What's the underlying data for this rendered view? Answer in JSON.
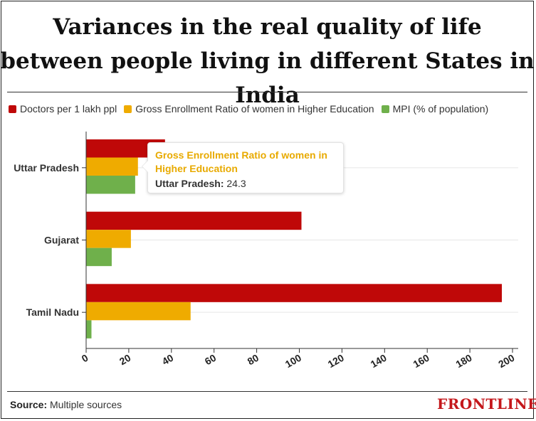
{
  "colors": {
    "doctors": "#bf0808",
    "ger": "#efab00",
    "mpi": "#6fb04b",
    "grid": "#e6e6e6",
    "axis": "#333333"
  },
  "tooltip": {
    "series": "Gross Enrollment Ratio of women in Higher Education",
    "category": "Uttar Pradesh",
    "value": "24.3"
  },
  "footer": {
    "source_label": "Source:",
    "source_text": "Multiple sources",
    "logo": "FRONTLINE"
  },
  "chart_data": {
    "type": "bar",
    "orientation": "horizontal",
    "title": "Variances in the real quality of life between people living in different States in India",
    "categories": [
      "Uttar Pradesh",
      "Gujarat",
      "Tamil Nadu"
    ],
    "series": [
      {
        "name": "Doctors per 1 lakh ppl",
        "key": "doctors",
        "values": [
          37,
          101,
          195
        ]
      },
      {
        "name": "Gross Enrollment Ratio of women in Higher Education",
        "key": "ger",
        "values": [
          24.3,
          21,
          49
        ]
      },
      {
        "name": "MPI (% of population)",
        "key": "mpi",
        "values": [
          23,
          12,
          2.5
        ]
      }
    ],
    "xlim": [
      0,
      200
    ],
    "xticks": [
      0,
      20,
      40,
      60,
      80,
      100,
      120,
      140,
      160,
      180,
      200
    ],
    "xlabel": "",
    "ylabel": "",
    "grid": true,
    "legend_position": "top-left"
  }
}
